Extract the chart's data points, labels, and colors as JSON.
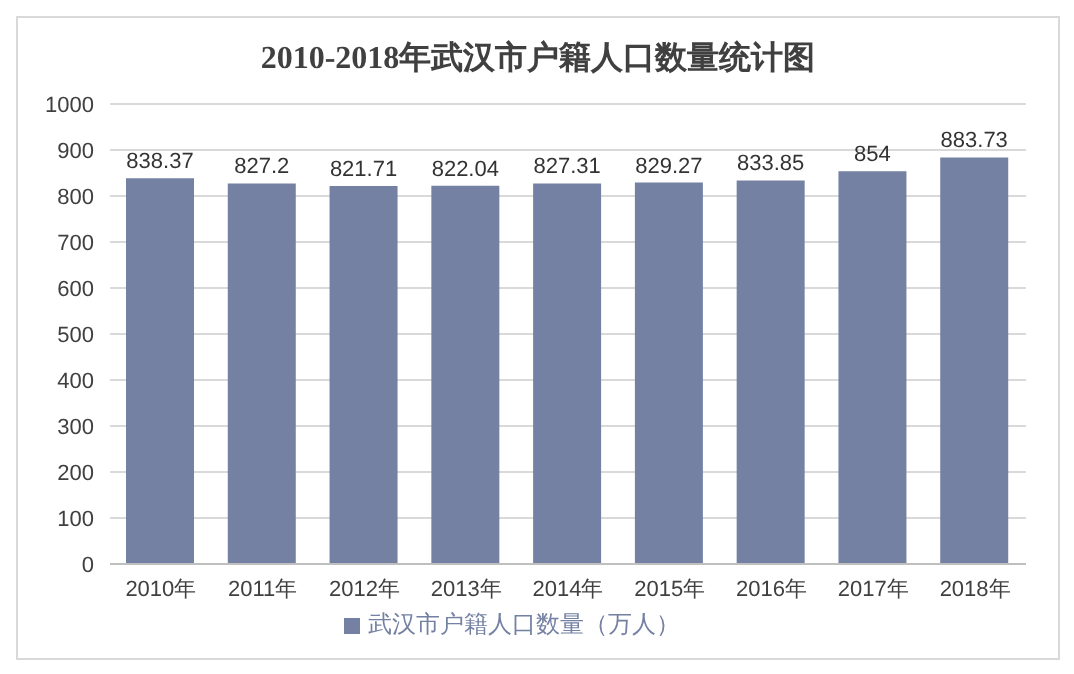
{
  "chart_data": {
    "type": "bar",
    "title": "2010-2018年武汉市户籍人口数量统计图",
    "categories": [
      "2010年",
      "2011年",
      "2012年",
      "2013年",
      "2014年",
      "2015年",
      "2016年",
      "2017年",
      "2018年"
    ],
    "series": [
      {
        "name": "武汉市户籍人口数量（万人）",
        "color": "#7581a3",
        "values": [
          838.37,
          827.2,
          821.71,
          822.04,
          827.31,
          829.27,
          833.85,
          854,
          883.73
        ]
      }
    ],
    "ylim": [
      0,
      1000
    ],
    "yticks": [
      0,
      100,
      200,
      300,
      400,
      500,
      600,
      700,
      800,
      900,
      1000
    ],
    "grid": "y",
    "legend": "bottom",
    "data_labels": true
  }
}
